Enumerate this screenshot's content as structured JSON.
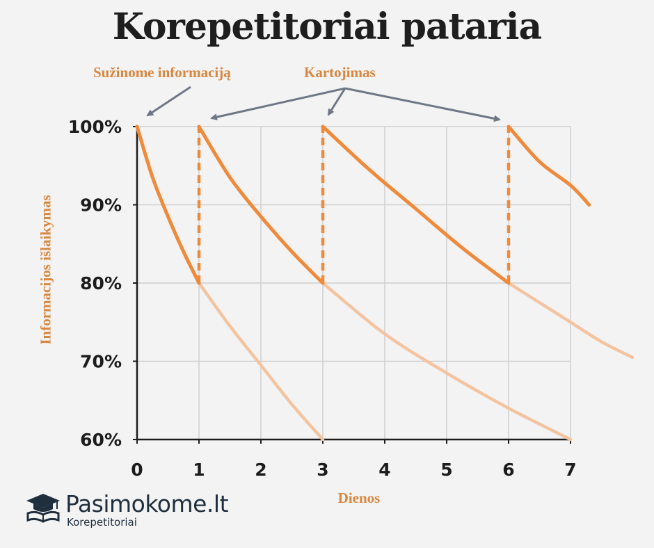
{
  "title": "Korepetitoriai pataria",
  "annotations": {
    "learn": "Sužinome informaciją",
    "repeat": "Kartojimas"
  },
  "colors": {
    "curve_strong": "#ef8a3b",
    "curve_faint": "#f3c49f",
    "arrow": "#6f7786",
    "grid": "#cfcfcf",
    "label": "#d9873f"
  },
  "logo": {
    "name": "Pasimokome.lt",
    "subtitle": "Korepetitoriai",
    "icon": "graduation-cap-book-icon"
  },
  "chart_data": {
    "type": "line",
    "title": "Korepetitoriai pataria",
    "xlabel": "Dienos",
    "ylabel": "Informacijos išlaikymas",
    "xlim": [
      0,
      7.3
    ],
    "ylim": [
      60,
      100
    ],
    "x_ticks": [
      {
        "value": 0,
        "label": "0"
      },
      {
        "value": 1,
        "label": "1"
      },
      {
        "value": 2,
        "label": "2"
      },
      {
        "value": 3,
        "label": "3"
      },
      {
        "value": 4,
        "label": "4"
      },
      {
        "value": 5,
        "label": "5"
      },
      {
        "value": 6,
        "label": "6"
      },
      {
        "value": 7,
        "label": "7"
      }
    ],
    "y_ticks": [
      {
        "value": 60,
        "label": "60%"
      },
      {
        "value": 70,
        "label": "70%"
      },
      {
        "value": 80,
        "label": "80%"
      },
      {
        "value": 90,
        "label": "90%"
      },
      {
        "value": 100,
        "label": "100%"
      }
    ],
    "grid": true,
    "review_points": [
      1,
      3,
      6
    ],
    "series": [
      {
        "kind": "reviewed",
        "points": [
          [
            0,
            100
          ],
          [
            0.25,
            93.5
          ],
          [
            0.5,
            88.5
          ],
          [
            0.75,
            84
          ],
          [
            1,
            80
          ]
        ]
      },
      {
        "kind": "reviewed",
        "points": [
          [
            1,
            100
          ],
          [
            1.5,
            93.5
          ],
          [
            2,
            88.5
          ],
          [
            2.5,
            84
          ],
          [
            3,
            80
          ]
        ]
      },
      {
        "kind": "reviewed",
        "points": [
          [
            3,
            100
          ],
          [
            3.75,
            94.5
          ],
          [
            4.5,
            89.5
          ],
          [
            5.25,
            84.5
          ],
          [
            6,
            80
          ]
        ]
      },
      {
        "kind": "reviewed",
        "points": [
          [
            6,
            100
          ],
          [
            6.5,
            95.5
          ],
          [
            7,
            92.5
          ],
          [
            7.3,
            90
          ]
        ]
      },
      {
        "kind": "forgotten",
        "points": [
          [
            1,
            80
          ],
          [
            1.5,
            74.5
          ],
          [
            2,
            69.5
          ],
          [
            2.5,
            64.5
          ],
          [
            3,
            60
          ]
        ]
      },
      {
        "kind": "forgotten",
        "points": [
          [
            3,
            80
          ],
          [
            4,
            73.5
          ],
          [
            5,
            68.5
          ],
          [
            6,
            64
          ],
          [
            7,
            60
          ]
        ]
      },
      {
        "kind": "forgotten",
        "points": [
          [
            6,
            80
          ],
          [
            6.5,
            77.5
          ],
          [
            7,
            75
          ],
          [
            7.5,
            72.5
          ],
          [
            8,
            70.5
          ]
        ]
      }
    ]
  }
}
